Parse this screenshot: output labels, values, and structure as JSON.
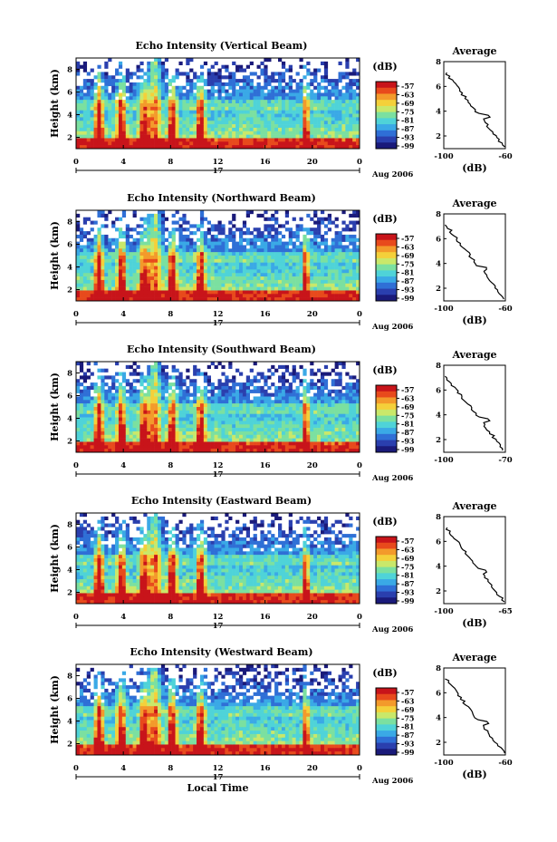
{
  "chart_data": [
    {
      "type": "heatmap",
      "title": "Echo Intensity (Vertical Beam)",
      "ylabel": "Height (km)",
      "x_ticks": [
        "0",
        "4",
        "8",
        "12",
        "16",
        "20",
        "0"
      ],
      "day_label": "17",
      "month_label": "Aug 2006",
      "y_ticks": [
        "2",
        "4",
        "6",
        "8"
      ],
      "colorbar": {
        "unit": "(dB)",
        "levels": [
          "-57",
          "-63",
          "-69",
          "-75",
          "-81",
          "-87",
          "-93",
          "-99"
        ]
      },
      "average": {
        "title": "Average",
        "xlabel": "(dB)",
        "x_ticks": [
          "-100",
          "-60"
        ],
        "xlim": [
          -100,
          -60
        ],
        "y_ticks": [
          "2",
          "4",
          "6",
          "8"
        ]
      }
    },
    {
      "type": "heatmap",
      "title": "Echo Intensity (Northward Beam)",
      "ylabel": "Height (km)",
      "x_ticks": [
        "0",
        "4",
        "8",
        "12",
        "16",
        "20",
        "0"
      ],
      "day_label": "17",
      "month_label": "Aug 2006",
      "y_ticks": [
        "2",
        "4",
        "6",
        "8"
      ],
      "colorbar": {
        "unit": "(dB)",
        "levels": [
          "-57",
          "-63",
          "-69",
          "-75",
          "-81",
          "-87",
          "-93",
          "-99"
        ]
      },
      "average": {
        "title": "Average",
        "xlabel": "(dB)",
        "x_ticks": [
          "-100",
          "-60"
        ],
        "xlim": [
          -100,
          -60
        ],
        "y_ticks": [
          "2",
          "4",
          "6",
          "8"
        ]
      }
    },
    {
      "type": "heatmap",
      "title": "Echo Intensity (Southward Beam)",
      "ylabel": "Height (km)",
      "x_ticks": [
        "0",
        "4",
        "8",
        "12",
        "16",
        "20",
        "0"
      ],
      "day_label": "17",
      "month_label": "Aug 2006",
      "y_ticks": [
        "2",
        "4",
        "6",
        "8"
      ],
      "colorbar": {
        "unit": "(dB)",
        "levels": [
          "-57",
          "-63",
          "-69",
          "-75",
          "-81",
          "-87",
          "-93",
          "-99"
        ]
      },
      "average": {
        "title": "Average",
        "xlabel": "",
        "x_ticks": [
          "-100",
          "-70"
        ],
        "xlim": [
          -100,
          -70
        ],
        "y_ticks": [
          "2",
          "4",
          "6",
          "8"
        ]
      }
    },
    {
      "type": "heatmap",
      "title": "Echo Intensity (Eastward Beam)",
      "ylabel": "Height (km)",
      "x_ticks": [
        "0",
        "4",
        "8",
        "12",
        "16",
        "20",
        "0"
      ],
      "day_label": "17",
      "month_label": "Aug 2006",
      "y_ticks": [
        "2",
        "4",
        "6",
        "8"
      ],
      "colorbar": {
        "unit": "(dB)",
        "levels": [
          "-57",
          "-63",
          "-69",
          "-75",
          "-81",
          "-87",
          "-93",
          "-99"
        ]
      },
      "average": {
        "title": "Average",
        "xlabel": "(dB)",
        "x_ticks": [
          "-100",
          "-65"
        ],
        "xlim": [
          -100,
          -65
        ],
        "y_ticks": [
          "2",
          "4",
          "6",
          "8"
        ]
      }
    },
    {
      "type": "heatmap",
      "title": "Echo Intensity (Westward Beam)",
      "ylabel": "Height (km)",
      "xlabel": "Local Time",
      "x_ticks": [
        "0",
        "4",
        "8",
        "12",
        "16",
        "20",
        "0"
      ],
      "day_label": "17",
      "month_label": "Aug 2006",
      "y_ticks": [
        "2",
        "4",
        "6",
        "8"
      ],
      "colorbar": {
        "unit": "(dB)",
        "levels": [
          "-57",
          "-63",
          "-69",
          "-75",
          "-81",
          "-87",
          "-93",
          "-99"
        ]
      },
      "average": {
        "title": "Average",
        "xlabel": "(dB)",
        "x_ticks": [
          "-100",
          "-60"
        ],
        "xlim": [
          -100,
          -60
        ],
        "y_ticks": [
          "2",
          "4",
          "6",
          "8"
        ]
      }
    }
  ],
  "colors": {
    "scale": [
      "#1a1a7a",
      "#2a3fae",
      "#2f6fd6",
      "#3aa9e6",
      "#4fd3d8",
      "#7be0a0",
      "#c9e86a",
      "#f4d03a",
      "#f39a2b",
      "#e84a1c",
      "#c8141a"
    ],
    "background": "#ffffff"
  }
}
